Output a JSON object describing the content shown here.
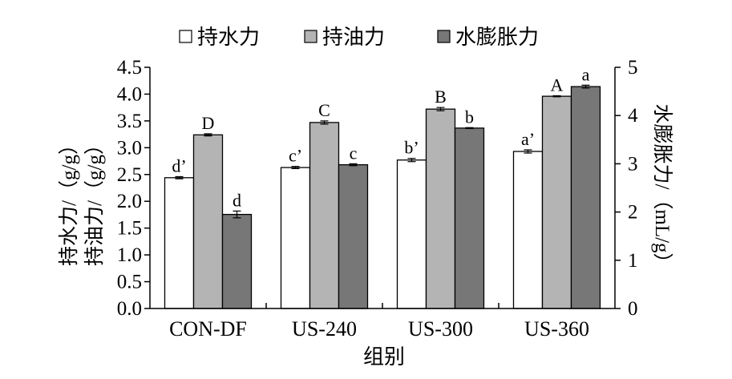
{
  "chart_data": {
    "type": "bar",
    "categories": [
      "CON-DF",
      "US-240",
      "US-300",
      "US-360"
    ],
    "series": [
      {
        "name": "持水力",
        "axis": "left",
        "color": "#ffffff",
        "values": [
          2.44,
          2.63,
          2.77,
          2.93
        ],
        "errors": [
          0.02,
          0.02,
          0.03,
          0.03
        ],
        "labels": [
          "d’",
          "c’",
          "b’",
          "a’"
        ]
      },
      {
        "name": "持油力",
        "axis": "left",
        "color": "#b4b4b4",
        "values": [
          3.24,
          3.47,
          3.72,
          3.96
        ],
        "errors": [
          0.02,
          0.03,
          0.03,
          0.01
        ],
        "labels": [
          "D",
          "C",
          "B",
          "A"
        ]
      },
      {
        "name": "水膨胀力",
        "axis": "right",
        "color": "#777777",
        "values": [
          1.95,
          2.98,
          3.74,
          4.6
        ],
        "errors": [
          0.07,
          0.02,
          0.01,
          0.03
        ],
        "labels": [
          "d",
          "c",
          "b",
          "a"
        ]
      }
    ],
    "xlabel": "组别",
    "ylabel_left_lines": [
      "持水力/（g/g）",
      "持油力/（g/g）"
    ],
    "ylabel_right": "水膨胀力/（mL/g）",
    "ylim_left": [
      0,
      4.5
    ],
    "yticks_left": [
      "0.0",
      "0.5",
      "1.0",
      "1.5",
      "2.0",
      "2.5",
      "3.0",
      "3.5",
      "4.0",
      "4.5"
    ],
    "ylim_right": [
      0,
      5
    ],
    "yticks_right": [
      "0",
      "1",
      "2",
      "3",
      "4",
      "5"
    ],
    "legend_position": "top-center",
    "grid": false
  }
}
